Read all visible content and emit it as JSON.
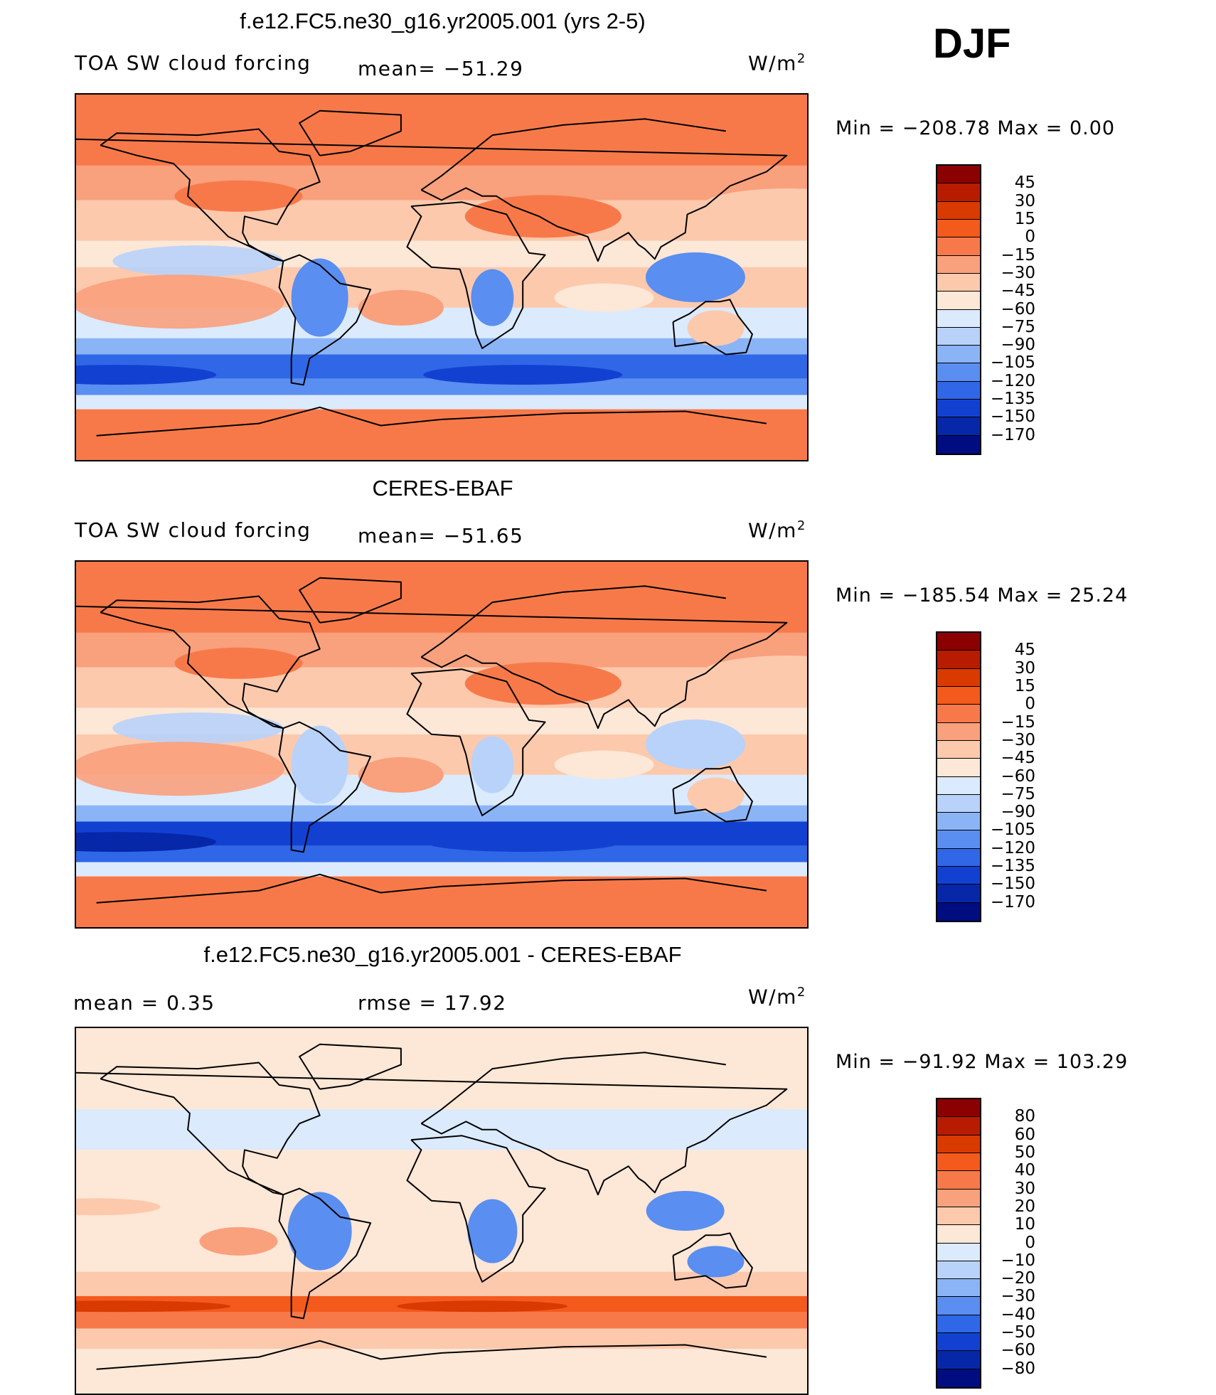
{
  "season": "DJF",
  "chart_data": [
    {
      "type": "heatmap",
      "title": "f.e12.FC5.ne30_g16.yr2005.001 (yrs 2-5)",
      "variable": "TOA SW cloud forcing",
      "stat_label": "mean= −51.29",
      "units": "W/m",
      "units_sup": "2",
      "minmax": "Min  =  −208.78  Max  =     0.00",
      "min": -208.78,
      "max": 0.0,
      "mean": -51.29,
      "colorbar_levels": [
        "45",
        "30",
        "15",
        "0",
        "−15",
        "−30",
        "−45",
        "−60",
        "−75",
        "−90",
        "−105",
        "−120",
        "−135",
        "−150",
        "−170"
      ],
      "colors": [
        "#8b0000",
        "#b71c00",
        "#d93a00",
        "#f35a1c",
        "#f7794a",
        "#f9a07d",
        "#fcc9ad",
        "#fde7d6",
        "#dbeafd",
        "#b8d2fa",
        "#8ab4f5",
        "#5a8ef0",
        "#2f67e6",
        "#1241d2",
        "#0627a8",
        "#000d80"
      ]
    },
    {
      "type": "heatmap",
      "title": "CERES-EBAF",
      "variable": "TOA SW cloud forcing",
      "stat_label": "mean= −51.65",
      "units": "W/m",
      "units_sup": "2",
      "minmax": "Min  =  −185.54  Max  =    25.24",
      "min": -185.54,
      "max": 25.24,
      "mean": -51.65,
      "colorbar_levels": [
        "45",
        "30",
        "15",
        "0",
        "−15",
        "−30",
        "−45",
        "−60",
        "−75",
        "−90",
        "−105",
        "−120",
        "−135",
        "−150",
        "−170"
      ],
      "colors": [
        "#8b0000",
        "#b71c00",
        "#d93a00",
        "#f35a1c",
        "#f7794a",
        "#f9a07d",
        "#fcc9ad",
        "#fde7d6",
        "#dbeafd",
        "#b8d2fa",
        "#8ab4f5",
        "#5a8ef0",
        "#2f67e6",
        "#1241d2",
        "#0627a8",
        "#000d80"
      ]
    },
    {
      "type": "heatmap",
      "title": "f.e12.FC5.ne30_g16.yr2005.001 - CERES-EBAF",
      "stat_left": "mean  =     0.35",
      "stat_right": "rmse  =    17.92",
      "units": "W/m",
      "units_sup": "2",
      "minmax": "Min  =  −91.92  Max  =  103.29",
      "min": -91.92,
      "max": 103.29,
      "mean": 0.35,
      "rmse": 17.92,
      "colorbar_levels": [
        "80",
        "60",
        "50",
        "40",
        "30",
        "20",
        "10",
        "0",
        "−10",
        "−20",
        "−30",
        "−40",
        "−50",
        "−60",
        "−80"
      ],
      "colors": [
        "#8b0000",
        "#b71c00",
        "#d93a00",
        "#f35a1c",
        "#f7794a",
        "#f9a07d",
        "#fcc9ad",
        "#fde7d6",
        "#dbeafd",
        "#b8d2fa",
        "#8ab4f5",
        "#5a8ef0",
        "#2f67e6",
        "#1241d2",
        "#0627a8",
        "#000d80"
      ]
    }
  ]
}
